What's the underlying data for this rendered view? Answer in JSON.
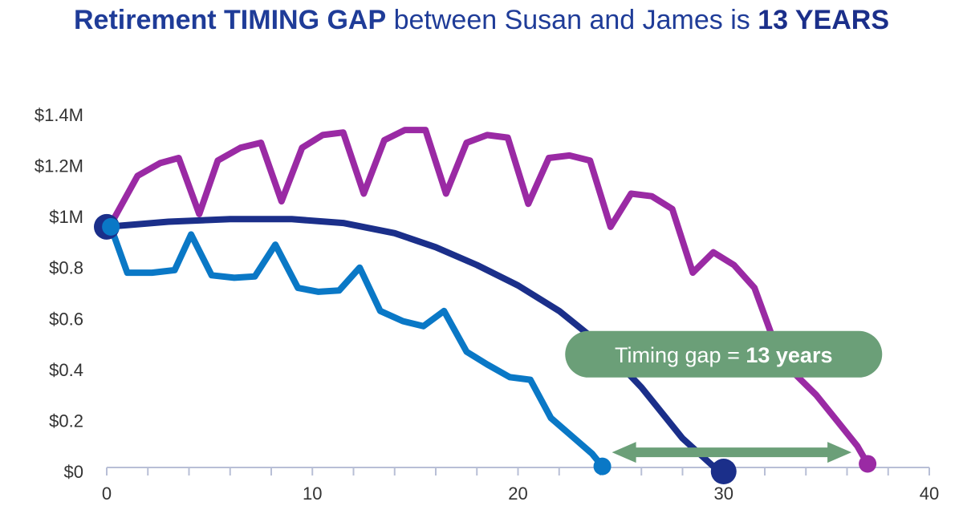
{
  "title": {
    "part1": "Retirement TIMING GAP",
    "part2": " between Susan and James is ",
    "part3": "13 YEARS"
  },
  "colors": {
    "title": "#1f3c98",
    "axis": "#b8bfd6",
    "annotation_fill": "#6b9f78",
    "arrow": "#6b9f78"
  },
  "chart_data": {
    "type": "line",
    "title": "Retirement TIMING GAP between Susan and James is 13 YEARS",
    "xlabel": "",
    "ylabel": "",
    "xlim": [
      0,
      40
    ],
    "ylim": [
      0,
      1.4
    ],
    "grid": false,
    "x_ticks": [
      {
        "value": 0,
        "label": "0"
      },
      {
        "value": 10,
        "label": "10"
      },
      {
        "value": 20,
        "label": "20"
      },
      {
        "value": 30,
        "label": "30"
      },
      {
        "value": 40,
        "label": "40"
      }
    ],
    "y_ticks": [
      {
        "value": 0,
        "label": "$0"
      },
      {
        "value": 0.2,
        "label": "$0.2"
      },
      {
        "value": 0.4,
        "label": "$0.4"
      },
      {
        "value": 0.6,
        "label": "$0.6"
      },
      {
        "value": 0.8,
        "label": "$0.8"
      },
      {
        "value": 1.0,
        "label": "$1M"
      },
      {
        "value": 1.2,
        "label": "$1.2M"
      },
      {
        "value": 1.4,
        "label": "$1.4M"
      }
    ],
    "series": [
      {
        "color": "#0a78c6",
        "x": [
          0.2,
          1,
          2.2,
          3.3,
          4.1,
          5.1,
          6.2,
          7.2,
          8.2,
          9.3,
          10.3,
          11.3,
          12.3,
          13.3,
          14.4,
          15.4,
          16.4,
          17.5,
          18.5,
          19.6,
          20.6,
          21.6,
          22.6,
          23.6,
          24.1
        ],
        "y": [
          0.96,
          0.78,
          0.78,
          0.79,
          0.93,
          0.77,
          0.76,
          0.765,
          0.89,
          0.72,
          0.705,
          0.71,
          0.8,
          0.63,
          0.59,
          0.57,
          0.63,
          0.47,
          0.42,
          0.37,
          0.36,
          0.21,
          0.14,
          0.07,
          0.02
        ]
      },
      {
        "color": "#1b2f8a",
        "x": [
          0,
          3,
          6,
          9,
          11.5,
          14,
          16,
          18,
          20,
          22,
          24,
          26,
          28,
          29.5
        ],
        "y": [
          0.96,
          0.98,
          0.99,
          0.99,
          0.975,
          0.935,
          0.88,
          0.81,
          0.73,
          0.63,
          0.5,
          0.33,
          0.13,
          0.02
        ]
      },
      {
        "color": "#9a2aa4",
        "x": [
          0.2,
          1.5,
          2.6,
          3.5,
          4.5,
          5.4,
          6.5,
          7.5,
          8.5,
          9.5,
          10.5,
          11.5,
          12.5,
          13.5,
          14.5,
          15.5,
          16.5,
          17.5,
          18.5,
          19.5,
          20.5,
          21.5,
          22.5,
          23.5,
          24.5,
          25.5,
          26.5,
          27.5,
          28.5,
          29.5,
          30.5,
          31.5,
          32.5,
          33.5,
          34.5,
          35.5,
          36.5,
          37
        ],
        "y": [
          0.97,
          1.16,
          1.21,
          1.23,
          1.01,
          1.22,
          1.27,
          1.29,
          1.06,
          1.27,
          1.32,
          1.33,
          1.09,
          1.3,
          1.34,
          1.34,
          1.09,
          1.29,
          1.32,
          1.31,
          1.05,
          1.23,
          1.24,
          1.22,
          0.96,
          1.09,
          1.08,
          1.03,
          0.78,
          0.86,
          0.81,
          0.72,
          0.5,
          0.38,
          0.3,
          0.2,
          0.1,
          0.03
        ]
      }
    ],
    "markers": [
      {
        "x": 0,
        "y": 0.96,
        "color": "#1b2f8a",
        "size": "large"
      },
      {
        "x": 0.2,
        "y": 0.96,
        "color": "#0a78c6",
        "size": "small"
      },
      {
        "x": 24.1,
        "y": 0.02,
        "color": "#0a78c6",
        "size": "small"
      },
      {
        "x": 30,
        "y": 0.0,
        "color": "#1b2f8a",
        "size": "large"
      },
      {
        "x": 37,
        "y": 0.03,
        "color": "#9a2aa4",
        "size": "small"
      }
    ],
    "annotation": {
      "text_prefix": "Timing gap = ",
      "text_bold": "13 years",
      "arrow_x_start": 24.1,
      "arrow_x_end": 37,
      "arrow_y": 0.05,
      "label_x": 30,
      "label_y": 0.46
    }
  }
}
